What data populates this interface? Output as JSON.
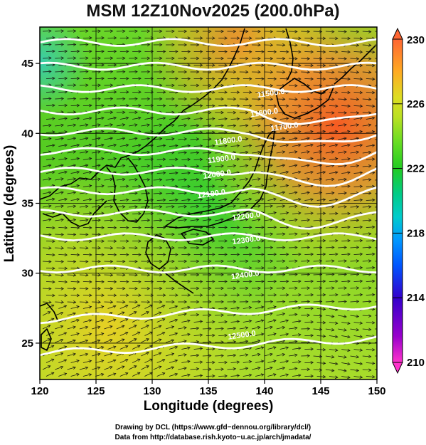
{
  "title": "MSM 12Z10Nov2025 (200.0hPa)",
  "x_axis": {
    "label": "Longitude (degrees)",
    "ticks": [
      120,
      125,
      130,
      135,
      140,
      145,
      150
    ],
    "range": [
      120,
      150
    ]
  },
  "y_axis": {
    "label": "Latitude  (degrees)",
    "ticks": [
      25,
      30,
      35,
      40,
      45
    ],
    "range": [
      22.4,
      47.6
    ]
  },
  "colorbar": {
    "ticks": [
      230,
      226,
      222,
      218,
      214,
      210
    ],
    "range": [
      210,
      230
    ],
    "colors": [
      "#ff33cc",
      "#9900cc",
      "#3300cc",
      "#0033ff",
      "#0099ff",
      "#00cccc",
      "#00cc88",
      "#22cc22",
      "#66dd22",
      "#bbe022",
      "#dddd22",
      "#ffaa22",
      "#ff6633"
    ]
  },
  "contour_labels": [
    {
      "text": "11500.0",
      "lon": 140.6,
      "lat": 42.7
    },
    {
      "text": "11600.0",
      "lon": 140.0,
      "lat": 41.3
    },
    {
      "text": "11700.0",
      "lon": 141.8,
      "lat": 40.3
    },
    {
      "text": "11800.0",
      "lon": 136.8,
      "lat": 39.3
    },
    {
      "text": "11900.0",
      "lon": 136.2,
      "lat": 38.0
    },
    {
      "text": "12000.0",
      "lon": 135.8,
      "lat": 36.9
    },
    {
      "text": "12100.0",
      "lon": 135.3,
      "lat": 35.5
    },
    {
      "text": "12200.0",
      "lon": 138.4,
      "lat": 33.9
    },
    {
      "text": "12300.0",
      "lon": 138.4,
      "lat": 32.2
    },
    {
      "text": "12400.0",
      "lon": 138.3,
      "lat": 29.7
    },
    {
      "text": "12500.0",
      "lon": 138.0,
      "lat": 25.4
    }
  ],
  "credits": {
    "line1": "Drawing by DCL (https://www.gfd−dennou.org/library/dcl/)",
    "line2": "Data from http://database.rish.kyoto−u.ac.jp/arch/jmadata/"
  }
}
